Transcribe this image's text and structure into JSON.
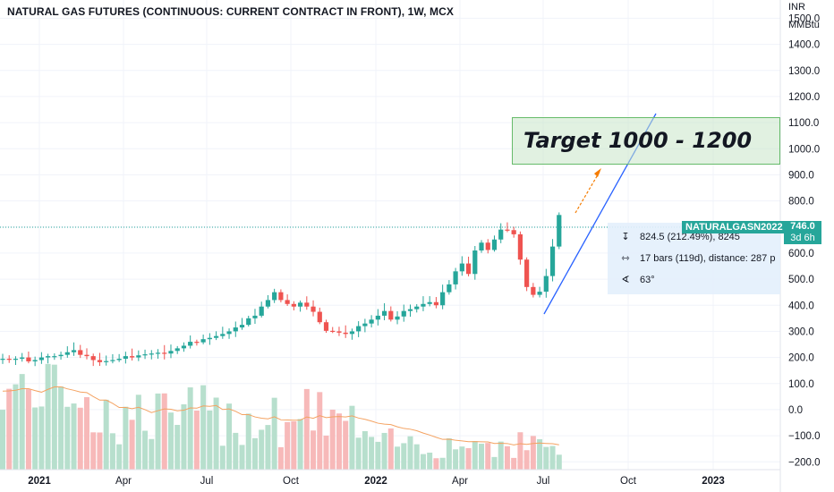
{
  "title": "NATURAL GAS FUTURES (CONTINUOUS: CURRENT CONTRACT IN FRONT), 1W, MCX",
  "price_axis": {
    "currency": "INR",
    "unit": "MMBtu",
    "ticks": [
      "1500.0",
      "1400.0",
      "1300.0",
      "1200.0",
      "1100.0",
      "1000.0",
      "900.0",
      "800.0",
      "700.0",
      "600.0",
      "500.0",
      "400.0",
      "300.0",
      "200.0",
      "100.0",
      "0.0",
      "−100.0",
      "−200.0"
    ]
  },
  "time_axis": {
    "labels": [
      {
        "text": "2021",
        "bold": true
      },
      {
        "text": "Apr",
        "bold": false
      },
      {
        "text": "Jul",
        "bold": false
      },
      {
        "text": "Oct",
        "bold": false
      },
      {
        "text": "2022",
        "bold": true
      },
      {
        "text": "Apr",
        "bold": false
      },
      {
        "text": "Jul",
        "bold": false
      },
      {
        "text": "Oct",
        "bold": false
      },
      {
        "text": "2023",
        "bold": true
      }
    ]
  },
  "annotations": {
    "target_text": "Target 1000 - 1200",
    "measure": {
      "price_change": "824.5 (212.49%), 8245",
      "bars": "17 bars (119d), distance: 287 p",
      "angle": "63°"
    },
    "symbol_label": "NATURALGASN2022",
    "last_price": "746.0",
    "countdown": "3d 6h"
  },
  "colors": {
    "up": "#26a69a",
    "down": "#ef5350",
    "volume_up": "#b7dfcd",
    "volume_down": "#f7b9b9",
    "volume_ma": "#f4a261",
    "trendline": "#2962ff",
    "arrow": "#f57c00",
    "target_fill": "#c8e6c9"
  },
  "chart_data": {
    "type": "candlestick",
    "interval": "1W",
    "y_range": [
      -230,
      1570
    ],
    "candles_weekly_close": [
      195,
      193,
      195,
      200,
      185,
      190,
      200,
      205,
      205,
      210,
      220,
      228,
      210,
      205,
      190,
      182,
      186,
      190,
      195,
      205,
      200,
      208,
      212,
      215,
      218,
      215,
      225,
      235,
      245,
      260,
      258,
      270,
      275,
      282,
      290,
      300,
      315,
      325,
      350,
      360,
      395,
      420,
      450,
      420,
      405,
      395,
      410,
      395,
      375,
      335,
      302,
      300,
      295,
      290,
      300,
      320,
      330,
      345,
      360,
      378,
      345,
      357,
      378,
      385,
      395,
      405,
      412,
      400,
      450,
      480,
      530,
      560,
      520,
      610,
      640,
      612,
      652,
      690,
      688,
      672,
      575,
      470,
      440,
      452,
      512,
      625,
      746
    ],
    "volume_bars": "volume histogram shown for each weekly candle with moving average line"
  }
}
